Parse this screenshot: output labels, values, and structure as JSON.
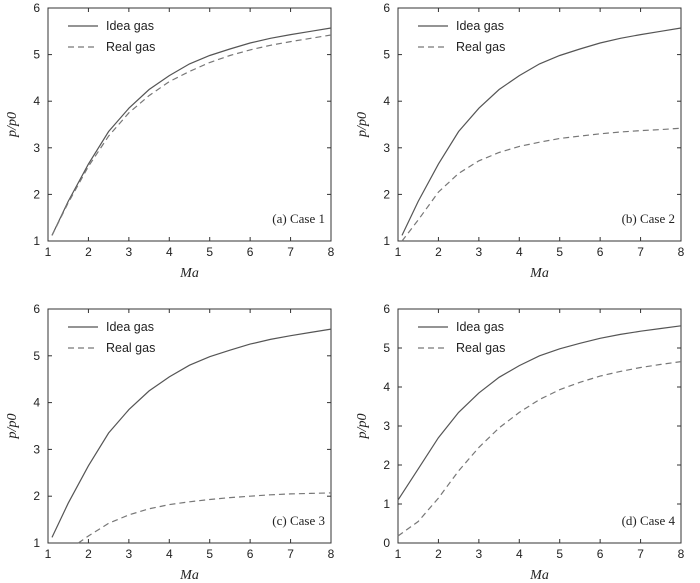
{
  "chart_data": [
    {
      "type": "line",
      "annotation": "(a) Case 1",
      "xlabel": "Ma",
      "ylabel": "p/p0",
      "xlim": [
        1,
        8
      ],
      "ylim": [
        1,
        6
      ],
      "xticks": [
        "1",
        "2",
        "3",
        "4",
        "5",
        "6",
        "7",
        "8"
      ],
      "yticks": [
        "1",
        "2",
        "3",
        "4",
        "5",
        "6"
      ],
      "legend_position": "top-left",
      "x": [
        1.1,
        1.5,
        2,
        2.5,
        3,
        3.5,
        4,
        4.5,
        5,
        5.5,
        6,
        6.5,
        7,
        7.5,
        8
      ],
      "series": [
        {
          "name": "Idea gas",
          "style": "solid",
          "values": [
            1.12,
            1.85,
            2.65,
            3.35,
            3.85,
            4.25,
            4.55,
            4.8,
            4.98,
            5.12,
            5.25,
            5.35,
            5.43,
            5.5,
            5.57
          ]
        },
        {
          "name": "Real gas",
          "style": "dashed",
          "values": [
            1.12,
            1.82,
            2.6,
            3.25,
            3.75,
            4.12,
            4.42,
            4.64,
            4.83,
            4.98,
            5.1,
            5.2,
            5.28,
            5.35,
            5.42
          ]
        }
      ]
    },
    {
      "type": "line",
      "annotation": "(b) Case 2",
      "xlabel": "Ma",
      "ylabel": "p/p0",
      "xlim": [
        1,
        8
      ],
      "ylim": [
        1,
        6
      ],
      "xticks": [
        "1",
        "2",
        "3",
        "4",
        "5",
        "6",
        "7",
        "8"
      ],
      "yticks": [
        "1",
        "2",
        "3",
        "4",
        "5",
        "6"
      ],
      "legend_position": "top-left",
      "x": [
        1.1,
        1.5,
        2,
        2.5,
        3,
        3.5,
        4,
        4.5,
        5,
        5.5,
        6,
        6.5,
        7,
        7.5,
        8
      ],
      "series": [
        {
          "name": "Idea gas",
          "style": "solid",
          "values": [
            1.12,
            1.85,
            2.65,
            3.35,
            3.85,
            4.25,
            4.55,
            4.8,
            4.98,
            5.12,
            5.25,
            5.35,
            5.43,
            5.5,
            5.57
          ]
        },
        {
          "name": "Real gas",
          "style": "dashed",
          "values": [
            1.0,
            1.45,
            2.05,
            2.45,
            2.72,
            2.9,
            3.03,
            3.12,
            3.2,
            3.25,
            3.3,
            3.34,
            3.37,
            3.39,
            3.42
          ]
        }
      ]
    },
    {
      "type": "line",
      "annotation": "(c) Case 3",
      "xlabel": "Ma",
      "ylabel": "p/p0",
      "xlim": [
        1,
        8
      ],
      "ylim": [
        1,
        6
      ],
      "xticks": [
        "1",
        "2",
        "3",
        "4",
        "5",
        "6",
        "7",
        "8"
      ],
      "yticks": [
        "1",
        "2",
        "3",
        "4",
        "5",
        "6"
      ],
      "legend_position": "top-left",
      "x": [
        1.1,
        1.5,
        2,
        2.5,
        3,
        3.5,
        4,
        4.5,
        5,
        5.5,
        6,
        6.5,
        7,
        7.5,
        8
      ],
      "series": [
        {
          "name": "Idea gas",
          "style": "solid",
          "values": [
            1.12,
            1.85,
            2.65,
            3.35,
            3.85,
            4.25,
            4.55,
            4.8,
            4.98,
            5.12,
            5.25,
            5.35,
            5.43,
            5.5,
            5.57
          ]
        },
        {
          "name": "Real gas",
          "style": "dashed",
          "x": [
            1.75,
            2,
            2.5,
            3,
            3.5,
            4,
            4.5,
            5,
            5.5,
            6,
            6.5,
            7,
            7.5,
            8
          ],
          "values": [
            1.0,
            1.15,
            1.42,
            1.6,
            1.73,
            1.82,
            1.88,
            1.93,
            1.97,
            2.0,
            2.03,
            2.05,
            2.06,
            2.07
          ]
        }
      ]
    },
    {
      "type": "line",
      "annotation": "(d) Case 4",
      "xlabel": "Ma",
      "ylabel": "p/p0",
      "xlim": [
        1,
        8
      ],
      "ylim": [
        0,
        6
      ],
      "xticks": [
        "1",
        "2",
        "3",
        "4",
        "5",
        "6",
        "7",
        "8"
      ],
      "yticks": [
        "0",
        "1",
        "2",
        "3",
        "4",
        "5",
        "6"
      ],
      "legend_position": "top-left",
      "x": [
        1.0,
        1.5,
        2,
        2.5,
        3,
        3.5,
        4,
        4.5,
        5,
        5.5,
        6,
        6.5,
        7,
        7.5,
        8
      ],
      "series": [
        {
          "name": "Idea gas",
          "style": "solid",
          "values": [
            1.1,
            1.9,
            2.7,
            3.35,
            3.85,
            4.25,
            4.55,
            4.8,
            4.98,
            5.12,
            5.25,
            5.35,
            5.43,
            5.5,
            5.57
          ]
        },
        {
          "name": "Real gas",
          "style": "dashed",
          "values": [
            0.18,
            0.55,
            1.15,
            1.85,
            2.45,
            2.95,
            3.35,
            3.68,
            3.93,
            4.12,
            4.28,
            4.4,
            4.5,
            4.58,
            4.65
          ]
        }
      ]
    }
  ]
}
